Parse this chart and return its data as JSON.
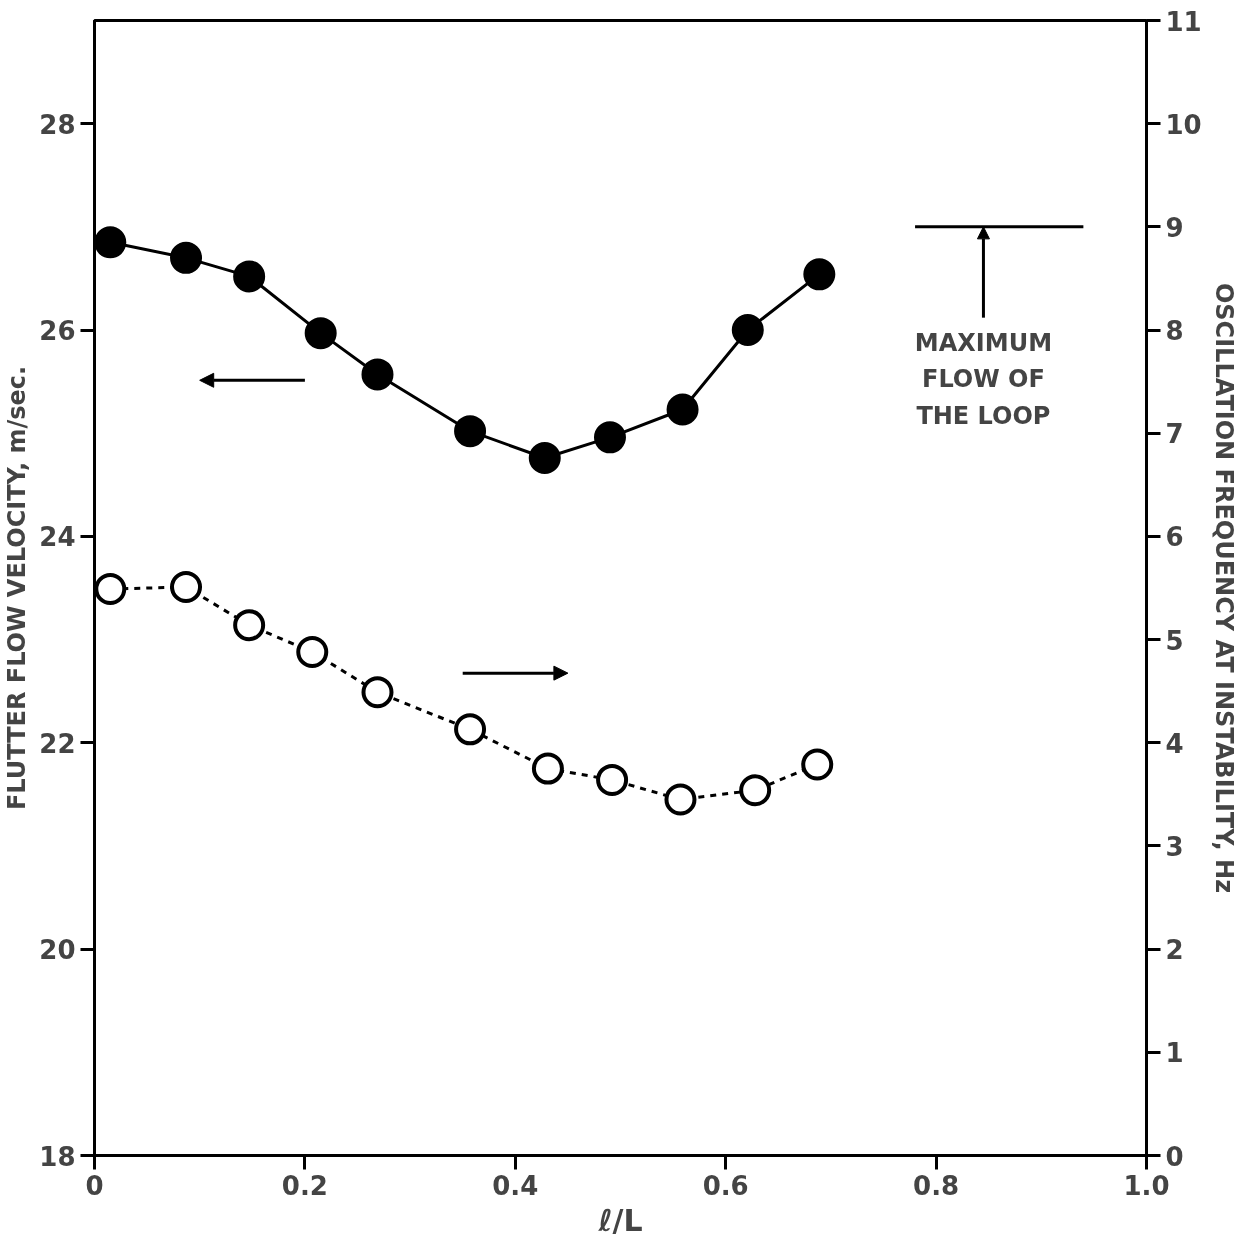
{
  "chart_data": {
    "type": "line",
    "xlabel": "ℓ/L",
    "ylabel": "FLUTTER FLOW VELOCITY, m/sec.",
    "y2label": "OSCILLATION FREQUENCY AT INSTABILITY, Hz",
    "xlim": [
      0,
      1.0
    ],
    "xticks": [
      {
        "value": 0,
        "label": "0"
      },
      {
        "value": 0.2,
        "label": "0.2"
      },
      {
        "value": 0.4,
        "label": "0.4"
      },
      {
        "value": 0.6,
        "label": "0.6"
      },
      {
        "value": 0.8,
        "label": "0.8"
      },
      {
        "value": 1.0,
        "label": "1.0"
      }
    ],
    "ylim": [
      18,
      29
    ],
    "yticks": [
      18,
      20,
      22,
      24,
      26,
      28
    ],
    "y2lim": [
      0,
      11
    ],
    "y2ticks": [
      0,
      1,
      2,
      3,
      4,
      5,
      6,
      7,
      8,
      9,
      10,
      11
    ],
    "grid": false,
    "series": [
      {
        "color": "#000000",
        "marker": "circle",
        "line_style": "solid",
        "x": [
          0.015,
          0.087,
          0.147,
          0.215,
          0.269,
          0.357,
          0.428,
          0.49,
          0.559,
          0.621,
          0.689
        ],
        "values": [
          26.85,
          26.7,
          26.52,
          25.97,
          25.57,
          25.02,
          24.76,
          24.96,
          25.23,
          26.0,
          26.54
        ]
      },
      {
        "color": "#000000",
        "marker": "circle_open",
        "line_style": "dashed",
        "axis": "y2",
        "x": [
          0.015,
          0.087,
          0.147,
          0.207,
          0.269,
          0.357,
          0.431,
          0.492,
          0.557,
          0.628,
          0.687
        ],
        "values": [
          5.49,
          5.51,
          5.14,
          4.88,
          4.49,
          4.13,
          3.75,
          3.64,
          3.45,
          3.54,
          3.79
        ]
      }
    ],
    "ref_lines": [
      {
        "axis": "y",
        "value": 27.0,
        "label": "MAXIMUM\nFLOW OF\nTHE LOOP"
      }
    ]
  }
}
